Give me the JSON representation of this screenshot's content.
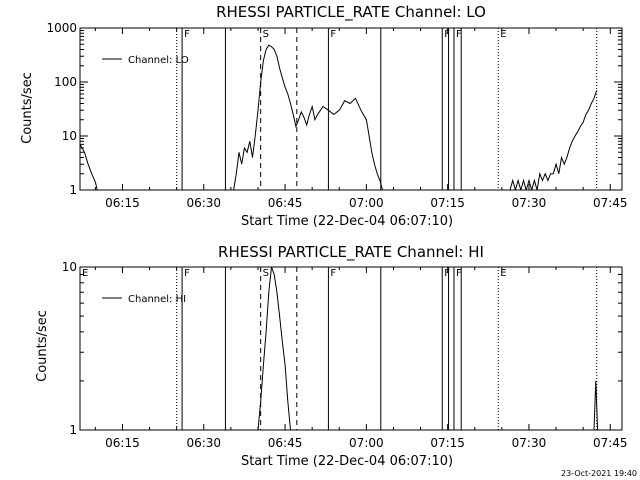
{
  "colors": {
    "background": "#ffffff",
    "foreground": "#000000"
  },
  "footer": {
    "timestamp": "23-Oct-2021 19:40"
  },
  "chart_data": [
    {
      "type": "line",
      "title": "RHESSI PARTICLE_RATE Channel: LO",
      "xlabel": "Start Time (22-Dec-04 06:07:10)",
      "ylabel": "Counts/sec",
      "yscale": "log",
      "xlim": [
        "06:07:10",
        "07:47:10"
      ],
      "ylim": [
        1,
        1000
      ],
      "x_ticks": [
        "06:15",
        "06:30",
        "06:45",
        "07:00",
        "07:15",
        "07:30",
        "07:45"
      ],
      "y_ticks": [
        "1",
        "10",
        "100",
        "1000"
      ],
      "legend": {
        "label": "Channel: LO",
        "position": "top-left"
      },
      "markers": [
        {
          "time": "06:25:00",
          "style": "dotted",
          "label": ""
        },
        {
          "time": "06:26:00",
          "style": "solid",
          "label": "F"
        },
        {
          "time": "06:34:00",
          "style": "solid",
          "label": ""
        },
        {
          "time": "06:40:30",
          "style": "dashed",
          "label": "S"
        },
        {
          "time": "06:47:10",
          "style": "dashed",
          "label": ""
        },
        {
          "time": "06:53:00",
          "style": "solid",
          "label": "F"
        },
        {
          "time": "07:02:40",
          "style": "solid",
          "label": ""
        },
        {
          "time": "07:14:00",
          "style": "solid",
          "label": "F"
        },
        {
          "time": "07:15:10",
          "style": "solid",
          "label": ""
        },
        {
          "time": "07:16:10",
          "style": "solid",
          "label": "F"
        },
        {
          "time": "07:17:30",
          "style": "solid",
          "label": ""
        },
        {
          "time": "07:24:20",
          "style": "dotted",
          "label": "E"
        },
        {
          "time": "07:42:30",
          "style": "dotted",
          "label": ""
        }
      ],
      "series": [
        {
          "x": [
            "06:07:10",
            "06:08:00",
            "06:08:40",
            "06:09:20",
            "06:10:00",
            "06:10:20",
            "06:35:30",
            "06:36:00",
            "06:36:30",
            "06:37:00",
            "06:37:30",
            "06:38:00",
            "06:38:30",
            "06:39:00",
            "06:39:30",
            "06:40:00",
            "06:40:30",
            "06:41:00",
            "06:41:30",
            "06:42:00",
            "06:42:30",
            "06:43:00",
            "06:43:30",
            "06:44:00",
            "06:44:30",
            "06:45:00",
            "06:45:30",
            "06:46:00",
            "06:46:30",
            "06:47:00",
            "06:47:30",
            "06:48:00",
            "06:48:30",
            "06:49:00",
            "06:49:30",
            "06:50:00",
            "06:50:30",
            "06:51:00",
            "06:52:00",
            "06:53:00",
            "06:54:00",
            "06:55:00",
            "06:56:00",
            "06:57:00",
            "06:58:00",
            "06:59:00",
            "07:00:00",
            "07:00:30",
            "07:01:00",
            "07:01:30",
            "07:02:00",
            "07:02:30",
            "07:03:00",
            "07:26:30",
            "07:27:00",
            "07:27:30",
            "07:28:00",
            "07:28:30",
            "07:29:00",
            "07:29:30",
            "07:30:00",
            "07:30:30",
            "07:31:00",
            "07:31:30",
            "07:32:00",
            "07:32:30",
            "07:33:00",
            "07:33:30",
            "07:34:00",
            "07:34:30",
            "07:35:00",
            "07:35:30",
            "07:36:00",
            "07:36:30",
            "07:37:00",
            "07:37:30",
            "07:38:00",
            "07:38:30",
            "07:39:00",
            "07:39:30",
            "07:40:00",
            "07:40:30",
            "07:41:00",
            "07:41:30",
            "07:42:00",
            "07:42:30"
          ],
          "y": [
            7,
            5,
            3,
            2,
            1.4,
            1,
            1,
            2,
            5,
            3,
            6,
            5,
            8,
            4,
            10,
            30,
            100,
            250,
            400,
            480,
            450,
            400,
            300,
            180,
            120,
            80,
            60,
            40,
            25,
            15,
            20,
            28,
            22,
            16,
            25,
            35,
            20,
            25,
            35,
            30,
            25,
            30,
            45,
            40,
            50,
            30,
            20,
            10,
            5,
            3,
            2,
            1.5,
            1,
            1,
            1.5,
            1,
            1.5,
            1,
            1.5,
            1,
            1.5,
            1,
            1.5,
            1,
            2,
            1.5,
            2,
            1.5,
            2,
            2,
            3,
            2,
            4,
            3,
            4,
            6,
            8,
            10,
            12,
            15,
            18,
            25,
            30,
            40,
            50,
            70
          ]
        }
      ]
    },
    {
      "type": "line",
      "title": "RHESSI PARTICLE_RATE Channel: HI",
      "xlabel": "Start Time (22-Dec-04 06:07:10)",
      "ylabel": "Counts/sec",
      "yscale": "log",
      "xlim": [
        "06:07:10",
        "07:47:10"
      ],
      "ylim": [
        1,
        10
      ],
      "x_ticks": [
        "06:15",
        "06:30",
        "06:45",
        "07:00",
        "07:15",
        "07:30",
        "07:45"
      ],
      "y_ticks": [
        "1",
        "10"
      ],
      "legend": {
        "label": "Channel: HI",
        "position": "top-left"
      },
      "markers": [
        {
          "time": "06:07:10",
          "style": "none",
          "label": "E"
        },
        {
          "time": "06:25:00",
          "style": "dotted",
          "label": ""
        },
        {
          "time": "06:26:00",
          "style": "solid",
          "label": "F"
        },
        {
          "time": "06:34:00",
          "style": "solid",
          "label": ""
        },
        {
          "time": "06:40:30",
          "style": "dashed",
          "label": "S"
        },
        {
          "time": "06:47:10",
          "style": "dashed",
          "label": ""
        },
        {
          "time": "06:53:00",
          "style": "solid",
          "label": "F"
        },
        {
          "time": "07:02:40",
          "style": "solid",
          "label": ""
        },
        {
          "time": "07:14:00",
          "style": "solid",
          "label": "F"
        },
        {
          "time": "07:15:10",
          "style": "solid",
          "label": ""
        },
        {
          "time": "07:16:10",
          "style": "solid",
          "label": "F"
        },
        {
          "time": "07:17:30",
          "style": "solid",
          "label": ""
        },
        {
          "time": "07:24:20",
          "style": "dotted",
          "label": "E"
        },
        {
          "time": "07:42:30",
          "style": "dotted",
          "label": ""
        }
      ],
      "series": [
        {
          "x": [
            "06:40:00",
            "06:40:30",
            "06:41:00",
            "06:41:30",
            "06:42:00",
            "06:42:30",
            "06:43:00",
            "06:43:30",
            "06:44:00",
            "06:44:30",
            "06:45:00",
            "06:45:30",
            "06:46:00",
            "07:42:00",
            "07:42:20",
            "07:42:40"
          ],
          "y": [
            1,
            1.5,
            2.5,
            4,
            7,
            10,
            9,
            7,
            5,
            3.5,
            2.5,
            1.5,
            1,
            1,
            2,
            1
          ]
        }
      ]
    }
  ]
}
